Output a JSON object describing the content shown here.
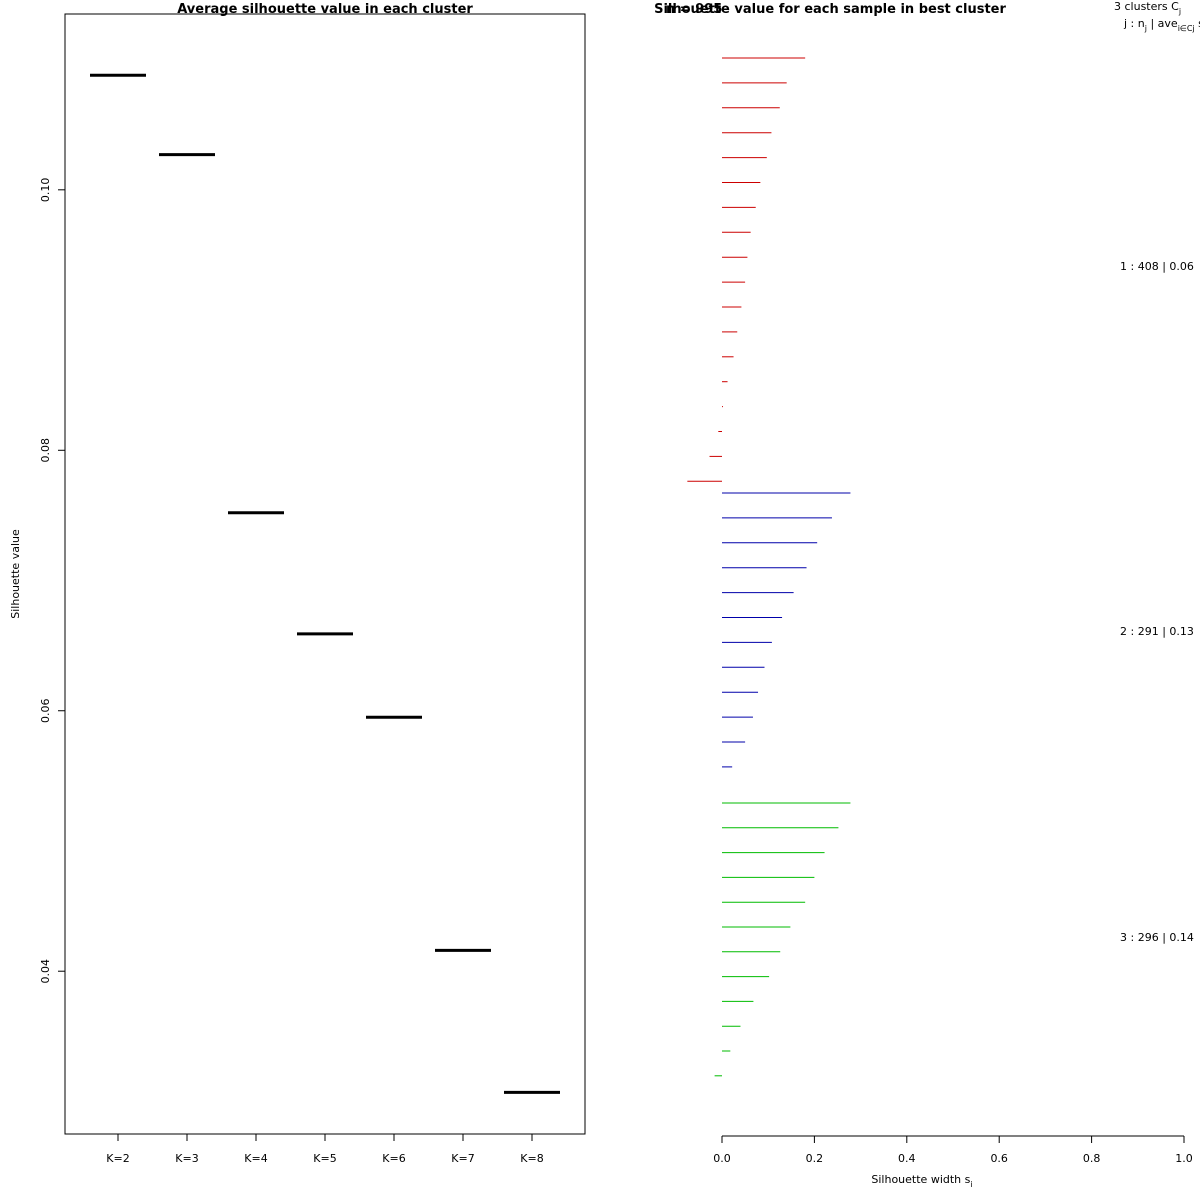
{
  "chart_data": [
    {
      "type": "line",
      "title": "Average silhouette value in each cluster",
      "xlabel": "",
      "ylabel": "Silhouette value",
      "categories": [
        "K=2",
        "K=3",
        "K=4",
        "K=5",
        "K=6",
        "K=7",
        "K=8"
      ],
      "values": [
        0.1088,
        0.1027,
        0.0752,
        0.0659,
        0.0595,
        0.0416,
        0.0307
      ],
      "ylim": [
        0.0275,
        0.1135
      ],
      "yticks": [
        "0.04",
        "0.06",
        "0.08",
        "0.10"
      ],
      "grid": false
    },
    {
      "type": "bar",
      "title": "Silhouette value for each sample in best cluster",
      "overlap_text": "n = 995",
      "xlabel": "Silhouette width s",
      "xlabel_sub": "i",
      "xlim": [
        0.0,
        1.0
      ],
      "xticks": [
        "0.0",
        "0.2",
        "0.4",
        "0.6",
        "0.8",
        "1.0"
      ],
      "header": {
        "line1": "3  clusters  C",
        "line1_sub": "j",
        "line2": "j :  n",
        "line2_sub": "j",
        "line2b": " | ave",
        "line2b_sub": "i∈Cj",
        "line2c": "  s"
      },
      "clusters": [
        {
          "label": "1 :   408  |  0.06",
          "n": 408,
          "avg": 0.06,
          "color": "#cc0000",
          "values": [
            0.18,
            0.14,
            0.125,
            0.107,
            0.097,
            0.083,
            0.073,
            0.062,
            0.055,
            0.05,
            0.042,
            0.033,
            0.025,
            0.012,
            0.002,
            -0.008,
            -0.027,
            -0.075
          ]
        },
        {
          "label": "2 :   291  |  0.13",
          "n": 291,
          "avg": 0.13,
          "color": "#0000aa",
          "values": [
            0.278,
            0.238,
            0.206,
            0.183,
            0.155,
            0.13,
            0.108,
            0.092,
            0.078,
            0.067,
            0.05,
            0.022
          ]
        },
        {
          "label": "3 :   296  |  0.14",
          "n": 296,
          "avg": 0.14,
          "color": "#00bb00",
          "values": [
            0.278,
            0.252,
            0.222,
            0.2,
            0.18,
            0.148,
            0.126,
            0.102,
            0.068,
            0.04,
            0.018,
            -0.016
          ]
        }
      ]
    }
  ]
}
